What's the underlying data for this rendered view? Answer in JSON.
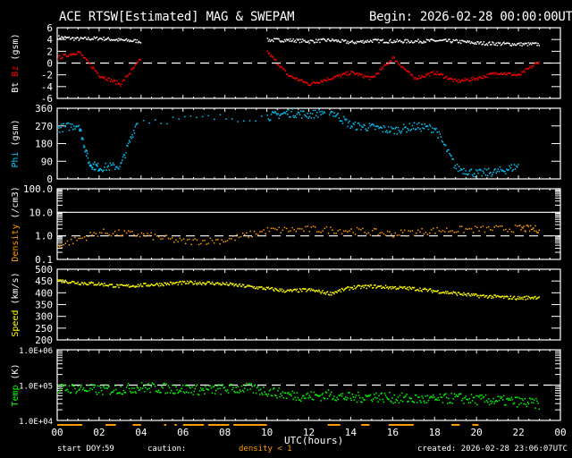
{
  "header": {
    "title": "ACE RTSW[Estimated] MAG & SWEPAM",
    "begin": "Begin: 2026-02-28 00:00:00UTC"
  },
  "footer": {
    "start_doy_label": "start DOY:",
    "start_doy": "59",
    "caution_label": "caution:",
    "caution_text": "density < 1",
    "created": "created: 2026-02-28 23:06:07UTC",
    "xlabel": "UTC(hours)"
  },
  "colors": {
    "background": "#000000",
    "axis": "#ffffff",
    "bt": "#ffffff",
    "bz": "#ff0000",
    "phi": "#00c8ff",
    "density": "#ff9900",
    "speed": "#ffff00",
    "temp": "#00ff00"
  },
  "chart_data": [
    {
      "type": "scatter",
      "panel": "mag",
      "ylabel": "Bt Bz (gsm)",
      "yticks": [
        "6",
        "4",
        "2",
        "0",
        "-2",
        "-4",
        "-6"
      ],
      "ylim": [
        -6,
        6
      ],
      "xlim": [
        0,
        24
      ],
      "reference_line": 0,
      "series": [
        {
          "name": "Bt",
          "color": "#ffffff",
          "x": [
            0,
            1,
            2,
            3,
            4,
            10,
            11,
            12,
            13,
            14,
            15,
            16,
            17,
            18,
            19,
            20,
            21,
            22,
            23
          ],
          "values": [
            4.5,
            4.2,
            4.3,
            4.0,
            3.8,
            4.0,
            4.0,
            3.8,
            4.0,
            3.6,
            3.9,
            3.8,
            3.8,
            3.9,
            3.8,
            3.5,
            3.4,
            3.3,
            3.3
          ]
        },
        {
          "name": "Bz",
          "color": "#ff0000",
          "x": [
            0,
            1,
            2,
            3,
            4,
            10,
            11,
            12,
            13,
            14,
            15,
            16,
            17,
            18,
            19,
            20,
            21,
            22,
            23
          ],
          "values": [
            1.0,
            2.0,
            -2.0,
            -3.5,
            1.0,
            2.0,
            -2.0,
            -3.5,
            -2.5,
            -1.5,
            -2.5,
            1.0,
            -2.5,
            -1.5,
            -3.0,
            -2.5,
            -1.5,
            -2.0,
            0.5
          ]
        }
      ]
    },
    {
      "type": "scatter",
      "panel": "phi",
      "ylabel": "Phi (gsm)",
      "yticks": [
        "360",
        "270",
        "180",
        "90",
        "0"
      ],
      "ylim": [
        0,
        360
      ],
      "xlim": [
        0,
        24
      ],
      "series": [
        {
          "name": "Phi",
          "color": "#00c8ff",
          "x": [
            0,
            1,
            1.5,
            2,
            3,
            3.8,
            10,
            11,
            12,
            13,
            14,
            15,
            16,
            17,
            18,
            19,
            20,
            21,
            22
          ],
          "values": [
            260,
            280,
            80,
            60,
            70,
            300,
            320,
            340,
            330,
            350,
            275,
            265,
            250,
            270,
            260,
            60,
            30,
            40,
            70
          ]
        }
      ]
    },
    {
      "type": "scatter",
      "panel": "density",
      "ylabel": "Density (/cm3)",
      "yscale": "log",
      "yticks": [
        "100.0",
        "10.0",
        "1.0",
        "0.1"
      ],
      "ylim": [
        0.1,
        100
      ],
      "xlim": [
        0,
        24
      ],
      "reference_line": 1.0,
      "series": [
        {
          "name": "Density",
          "color": "#ff9900",
          "x": [
            0,
            2,
            4,
            6,
            8,
            10,
            12,
            14,
            16,
            18,
            20,
            22,
            23
          ],
          "values": [
            0.4,
            1.5,
            1.2,
            0.6,
            0.7,
            1.8,
            2.0,
            1.8,
            1.3,
            1.8,
            2.0,
            2.2,
            2.0
          ]
        }
      ]
    },
    {
      "type": "scatter",
      "panel": "speed",
      "ylabel": "Speed (km/s)",
      "yticks": [
        "500",
        "450",
        "400",
        "350",
        "300",
        "250",
        "200"
      ],
      "ylim": [
        200,
        500
      ],
      "xlim": [
        0,
        24
      ],
      "series": [
        {
          "name": "Speed",
          "color": "#ffff00",
          "x": [
            0,
            1,
            2,
            3,
            4,
            5,
            6,
            7,
            8,
            9,
            10,
            11,
            12,
            13,
            14,
            15,
            16,
            17,
            18,
            19,
            20,
            21,
            22,
            23
          ],
          "values": [
            455,
            445,
            440,
            430,
            435,
            440,
            445,
            445,
            440,
            430,
            420,
            410,
            415,
            400,
            425,
            430,
            425,
            420,
            410,
            400,
            390,
            385,
            380,
            385
          ]
        }
      ]
    },
    {
      "type": "scatter",
      "panel": "temp",
      "ylabel": "Temp (K)",
      "yscale": "log",
      "yticks": [
        "1.0E+06",
        "1.0E+05",
        "1.0E+04"
      ],
      "ylim": [
        10000,
        1000000
      ],
      "xlim": [
        0,
        24
      ],
      "reference_line": 100000,
      "series": [
        {
          "name": "Temp",
          "color": "#00ff00",
          "x": [
            0,
            1,
            2,
            3,
            4,
            5,
            6,
            7,
            8,
            9,
            10,
            11,
            12,
            13,
            14,
            15,
            16,
            17,
            18,
            19,
            20,
            21,
            22,
            23
          ],
          "values": [
            80000,
            85000,
            75000,
            80000,
            90000,
            85000,
            80000,
            75000,
            80000,
            85000,
            70000,
            55000,
            50000,
            55000,
            45000,
            50000,
            45000,
            42000,
            40000,
            45000,
            40000,
            38000,
            35000,
            30000
          ]
        }
      ]
    }
  ],
  "xaxis": {
    "ticks": [
      "00",
      "02",
      "04",
      "06",
      "08",
      "10",
      "12",
      "14",
      "16",
      "18",
      "20",
      "22",
      "00"
    ],
    "label": "UTC(hours)"
  }
}
